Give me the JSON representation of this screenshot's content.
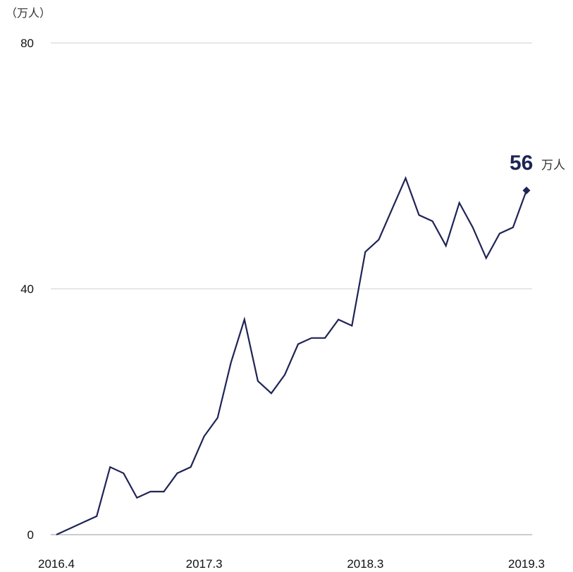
{
  "chart_data": {
    "type": "line",
    "unit_label": "（万人）",
    "ylim": [
      0,
      80
    ],
    "y_ticks": [
      {
        "value": 0,
        "label": "0"
      },
      {
        "value": 40,
        "label": "40"
      },
      {
        "value": 80,
        "label": "80"
      }
    ],
    "x_tick_labels": [
      "2016.4",
      "2017.3",
      "2018.3",
      "2019.3"
    ],
    "x_tick_index": [
      0,
      11,
      23,
      35
    ],
    "grid": true,
    "line_color": "#1e2455",
    "end_label": {
      "value": "56",
      "unit": "万人"
    },
    "series": [
      {
        "x": [
          "2016.4",
          "2016.5",
          "2016.6",
          "2016.7",
          "2016.8",
          "2016.9",
          "2016.10",
          "2016.11",
          "2016.12",
          "2017.1",
          "2017.2",
          "2017.3",
          "2017.4",
          "2017.5",
          "2017.6",
          "2017.7",
          "2017.8",
          "2017.9",
          "2017.10",
          "2017.11",
          "2017.12",
          "2018.1",
          "2018.2",
          "2018.3",
          "2018.4",
          "2018.5",
          "2018.6",
          "2018.7",
          "2018.8",
          "2018.9",
          "2018.10",
          "2018.11",
          "2018.12",
          "2019.1",
          "2019.2",
          "2019.3"
        ],
        "values": [
          0,
          1,
          2,
          3,
          11,
          10,
          6,
          7,
          7,
          10,
          11,
          16,
          19,
          28,
          35,
          25,
          23,
          26,
          31,
          32,
          32,
          35,
          34,
          46,
          48,
          53,
          58,
          52,
          51,
          47,
          54,
          50,
          45,
          49,
          50,
          56
        ]
      }
    ]
  }
}
